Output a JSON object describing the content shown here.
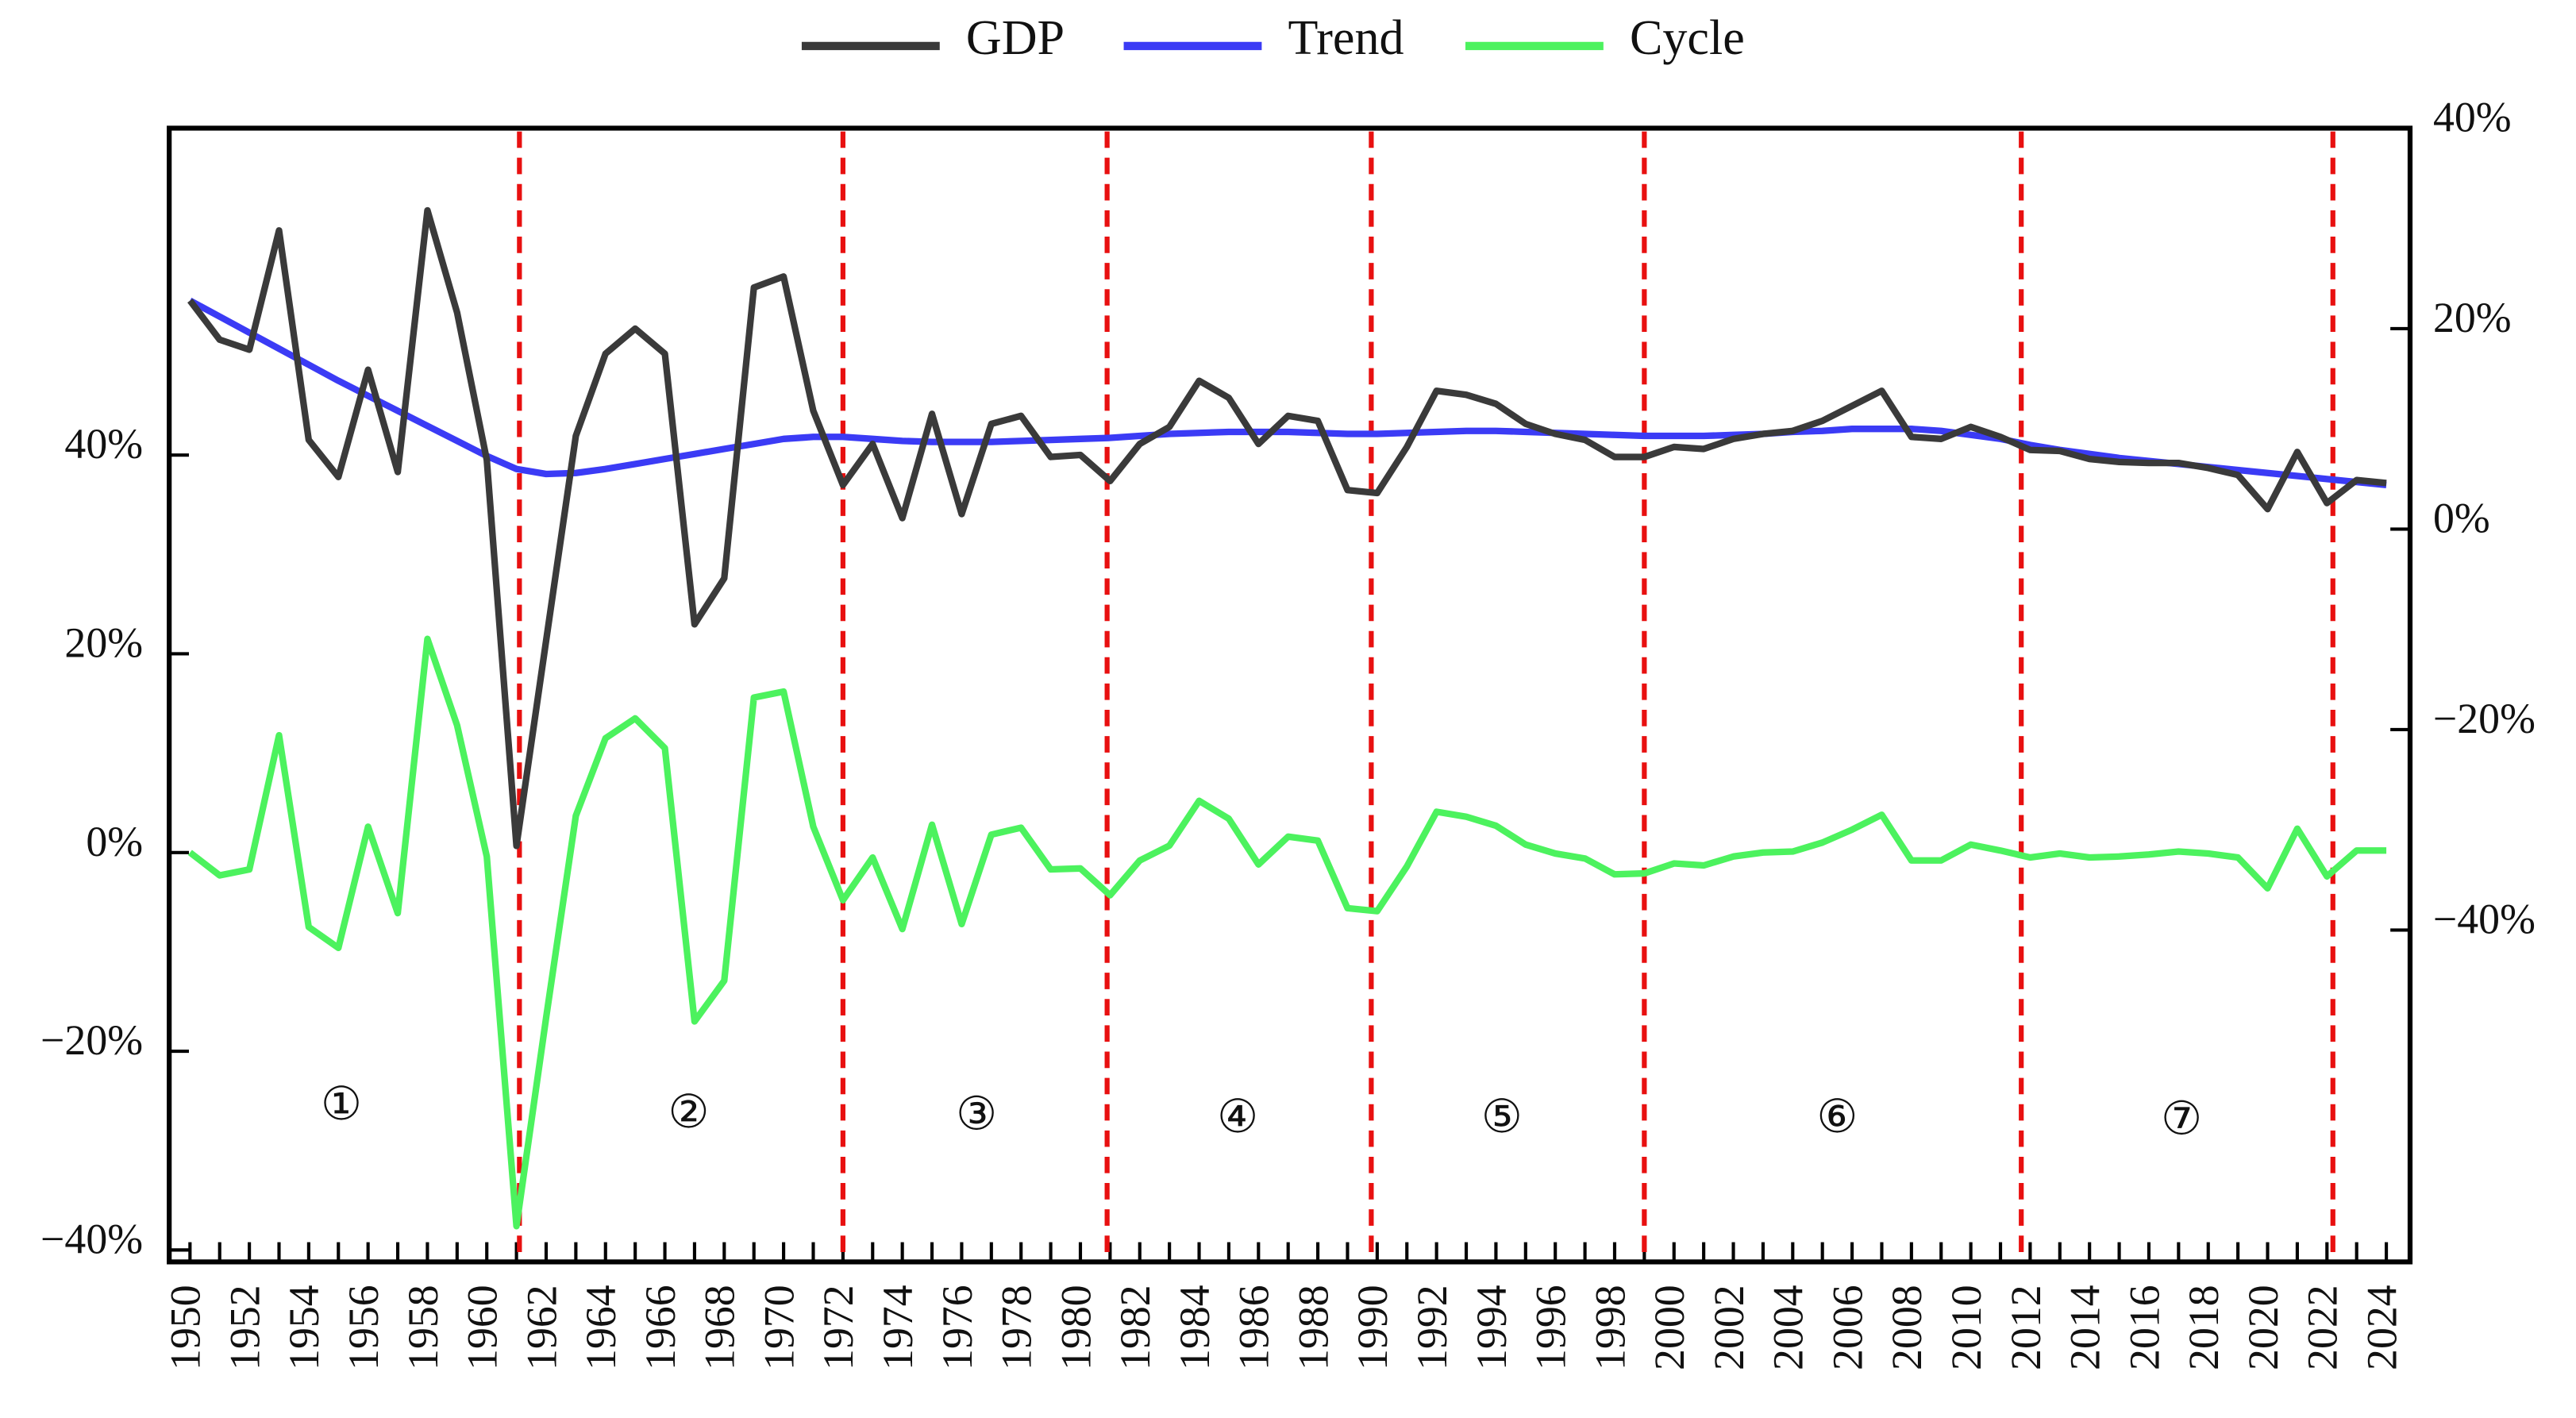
{
  "chart_data": {
    "type": "line",
    "x": [
      1950,
      1951,
      1952,
      1953,
      1954,
      1955,
      1956,
      1957,
      1958,
      1959,
      1960,
      1961,
      1962,
      1963,
      1964,
      1965,
      1966,
      1967,
      1968,
      1969,
      1970,
      1971,
      1972,
      1973,
      1974,
      1975,
      1976,
      1977,
      1978,
      1979,
      1980,
      1981,
      1982,
      1983,
      1984,
      1985,
      1986,
      1987,
      1988,
      1989,
      1990,
      1991,
      1992,
      1993,
      1994,
      1995,
      1996,
      1997,
      1998,
      1999,
      2000,
      2001,
      2002,
      2003,
      2004,
      2005,
      2006,
      2007,
      2008,
      2009,
      2010,
      2011,
      2012,
      2013,
      2014,
      2015,
      2016,
      2017,
      2018,
      2019,
      2020,
      2021,
      2022,
      2023,
      2024
    ],
    "series": [
      {
        "name": "GDP",
        "color": "#3a3a3a",
        "axis": "y2",
        "values": [
          22.8,
          18.9,
          17.9,
          29.8,
          8.9,
          5.2,
          15.9,
          5.7,
          31.8,
          21.6,
          6.9,
          -31.6,
          -11.1,
          9.3,
          17.5,
          20.0,
          17.5,
          -9.5,
          -4.9,
          24.1,
          25.2,
          11.8,
          4.4,
          8.5,
          1.1,
          11.5,
          1.5,
          10.5,
          11.3,
          7.2,
          7.4,
          4.8,
          8.5,
          10.2,
          14.8,
          13.1,
          8.5,
          11.3,
          10.8,
          3.9,
          3.6,
          8.2,
          13.8,
          13.4,
          12.5,
          10.5,
          9.5,
          8.9,
          7.2,
          7.2,
          8.2,
          8.0,
          9.0,
          9.5,
          9.8,
          10.8,
          12.3,
          13.8,
          9.2,
          9.0,
          10.2,
          9.2,
          7.9,
          7.8,
          7.0,
          6.7,
          6.6,
          6.6,
          6.1,
          5.4,
          2.0,
          7.7,
          2.6,
          4.9,
          4.6
        ]
      },
      {
        "name": "Trend",
        "color": "#3b3bf5",
        "axis": "y2",
        "values": [
          22.8,
          21.2,
          19.6,
          18.0,
          16.4,
          14.8,
          13.3,
          11.8,
          10.3,
          8.8,
          7.3,
          6.0,
          5.5,
          5.6,
          6.0,
          6.5,
          7.0,
          7.5,
          8.0,
          8.5,
          9.0,
          9.2,
          9.2,
          9.0,
          8.8,
          8.7,
          8.7,
          8.7,
          8.8,
          8.9,
          9.0,
          9.1,
          9.3,
          9.5,
          9.6,
          9.7,
          9.7,
          9.7,
          9.6,
          9.5,
          9.5,
          9.6,
          9.7,
          9.8,
          9.8,
          9.7,
          9.6,
          9.5,
          9.4,
          9.3,
          9.3,
          9.3,
          9.4,
          9.5,
          9.7,
          9.8,
          10.0,
          10.0,
          10.0,
          9.8,
          9.4,
          9.0,
          8.4,
          7.9,
          7.5,
          7.1,
          6.8,
          6.5,
          6.2,
          5.9,
          5.6,
          5.3,
          5.0,
          4.7,
          4.4
        ]
      },
      {
        "name": "Cycle",
        "color": "#4cf25e",
        "axis": "y",
        "values": [
          0.0,
          -2.3,
          -1.7,
          11.8,
          -7.5,
          -9.6,
          2.6,
          -6.1,
          21.5,
          12.8,
          -0.4,
          -37.6,
          -16.6,
          3.7,
          11.5,
          13.5,
          10.5,
          -17.0,
          -12.9,
          15.6,
          16.2,
          2.6,
          -4.8,
          -0.5,
          -7.7,
          2.8,
          -7.2,
          1.8,
          2.5,
          -1.7,
          -1.6,
          -4.3,
          -0.8,
          0.7,
          5.2,
          3.4,
          -1.2,
          1.6,
          1.2,
          -5.6,
          -5.9,
          -1.4,
          4.1,
          3.6,
          2.7,
          0.8,
          -0.1,
          -0.6,
          -2.2,
          -2.1,
          -1.1,
          -1.3,
          -0.4,
          0.0,
          0.1,
          1.0,
          2.3,
          3.8,
          -0.8,
          -0.8,
          0.8,
          0.2,
          -0.5,
          -0.1,
          -0.5,
          -0.4,
          -0.2,
          0.1,
          -0.1,
          -0.5,
          -3.6,
          2.4,
          -2.4,
          0.2,
          0.2
        ]
      }
    ],
    "xlim": [
      1949.3,
      2024.8
    ],
    "xticks": [
      1950,
      1952,
      1954,
      1956,
      1958,
      1960,
      1962,
      1964,
      1966,
      1968,
      1970,
      1972,
      1974,
      1976,
      1978,
      1980,
      1982,
      1984,
      1986,
      1988,
      1990,
      1992,
      1994,
      1996,
      1998,
      2000,
      2002,
      2004,
      2006,
      2008,
      2010,
      2012,
      2014,
      2016,
      2018,
      2020,
      2022,
      2024
    ],
    "xminorticks": [
      1951,
      1953,
      1955,
      1957,
      1959,
      1961,
      1963,
      1965,
      1967,
      1969,
      1971,
      1973,
      1975,
      1977,
      1979,
      1981,
      1983,
      1985,
      1987,
      1989,
      1991,
      1993,
      1995,
      1997,
      1999,
      2001,
      2003,
      2005,
      2007,
      2009,
      2011,
      2013,
      2015,
      2017,
      2019,
      2021,
      2023
    ],
    "ylim": [
      -41.2,
      72.9
    ],
    "yticks": [
      {
        "value": 40,
        "label": "40%"
      },
      {
        "value": 20,
        "label": "20%"
      },
      {
        "value": 0,
        "label": "0%"
      },
      {
        "value": -20,
        "label": "−20%"
      },
      {
        "value": -40,
        "label": "−40%"
      }
    ],
    "y2lim": [
      -73.1,
      40
    ],
    "y2ticks": [
      {
        "value": 40,
        "label": "40%"
      },
      {
        "value": 20,
        "label": "20%"
      },
      {
        "value": 0,
        "label": "0%"
      },
      {
        "value": -20,
        "label": "−20%"
      },
      {
        "value": -40,
        "label": "−40%"
      }
    ],
    "breaks": [
      1961.1,
      1972.0,
      1980.9,
      1989.8,
      1999.0,
      2011.7,
      2022.2
    ],
    "break_color": "#e81010",
    "annotations": [
      {
        "text": "①",
        "x": 1955.1,
        "y": -25.8
      },
      {
        "text": "②",
        "x": 1966.8,
        "y": -26.6
      },
      {
        "text": "③",
        "x": 1976.5,
        "y": -26.8
      },
      {
        "text": "④",
        "x": 1985.3,
        "y": -27.1
      },
      {
        "text": "⑤",
        "x": 1994.2,
        "y": -27.1
      },
      {
        "text": "⑥",
        "x": 2005.5,
        "y": -27.1
      },
      {
        "text": "⑦",
        "x": 2017.1,
        "y": -27.3
      }
    ],
    "legend": "top",
    "grid": false
  }
}
